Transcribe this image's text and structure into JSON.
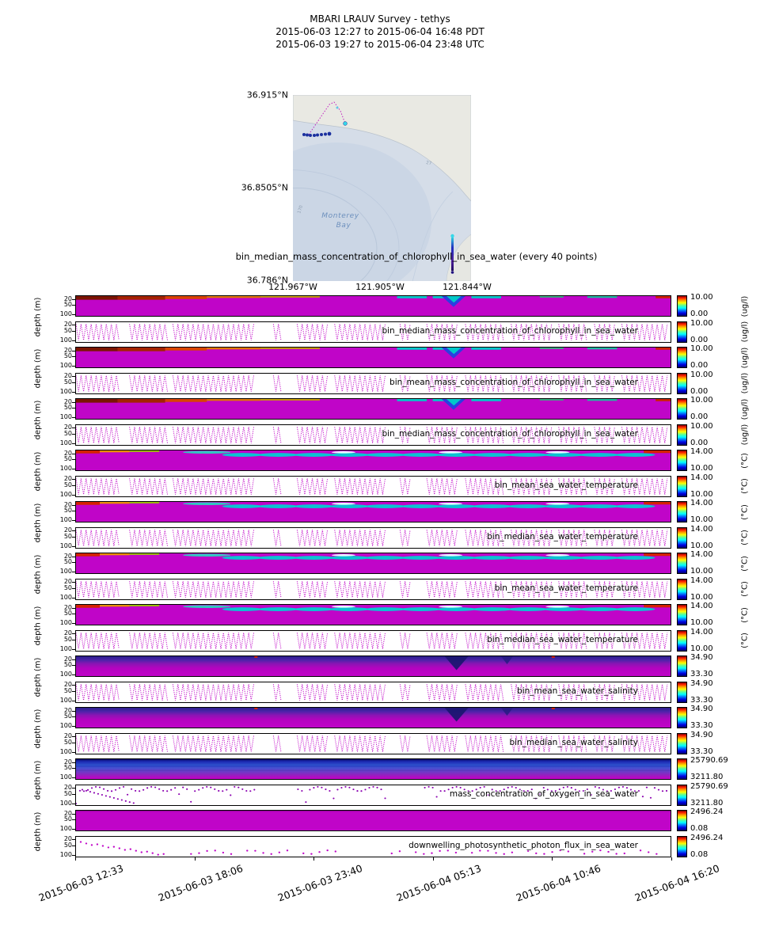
{
  "title": {
    "line1": "MBARI LRAUV Survey - tethys",
    "line2": "2015-06-03 12:27  to  2015-06-04 16:48 PDT",
    "line3": "2015-06-03 19:27  to  2015-06-04 23:48 UTC"
  },
  "map": {
    "lat_ticks": [
      "36.915°N",
      "36.8505°N",
      "36.786°N"
    ],
    "lon_ticks": [
      "121.967°W",
      "121.905°W",
      "121.844°W"
    ],
    "place_line1": "Monterey",
    "place_line2": "Bay",
    "contour_label_27": "27",
    "contour_label_170": "170"
  },
  "top_label": "bin_median_mass_concentration_of_chlorophyll_in_sea_water (every 40 points)",
  "chart_data": {
    "type": "heatmap",
    "description": "Depth-time section plots from LRAUV tethys survey; each measured parameter is shown as a binned contour (heatmap) panel plus a measurement scatter panel, each with a jet colorbar giving the color scale range.",
    "ylabel": "depth (m)",
    "y_ticks": [
      "20",
      "50",
      "100"
    ],
    "ylim": [
      0,
      110
    ],
    "y_inverted": true,
    "x_ticks": [
      "2015-06-03 12:33",
      "2015-06-03 18:06",
      "2015-06-03 23:40",
      "2015-06-04 05:13",
      "2015-06-04 10:46",
      "2015-06-04 16:20"
    ],
    "colormap": "jet",
    "panels": [
      {
        "parameter": "bin_median_mass_concentration_of_chlorophyll_in_sea_water",
        "unit": "(ug/l)",
        "cmax": "10.00",
        "cmin": "0.00",
        "kind": "chl"
      },
      {
        "parameter": "bin_mean_mass_concentration_of_chlorophyll_in_sea_water",
        "unit": "(ug/l)",
        "cmax": "10.00",
        "cmin": "0.00",
        "kind": "chl"
      },
      {
        "parameter": "bin_median_mass_concentration_of_chlorophyll_in_sea_water",
        "unit": "(ug/l)",
        "cmax": "10.00",
        "cmin": "0.00",
        "kind": "chl"
      },
      {
        "parameter": "bin_mean_sea_water_temperature",
        "unit": "(°C)",
        "cmax": "14.00",
        "cmin": "10.00",
        "kind": "temp"
      },
      {
        "parameter": "bin_median_sea_water_temperature",
        "unit": "(°C)",
        "cmax": "14.00",
        "cmin": "10.00",
        "kind": "temp"
      },
      {
        "parameter": "bin_mean_sea_water_temperature",
        "unit": "(°C)",
        "cmax": "14.00",
        "cmin": "10.00",
        "kind": "temp"
      },
      {
        "parameter": "bin_median_sea_water_temperature",
        "unit": "(°C)",
        "cmax": "14.00",
        "cmin": "10.00",
        "kind": "temp"
      },
      {
        "parameter": "bin_mean_sea_water_salinity",
        "unit": "",
        "cmax": "34.90",
        "cmin": "33.30",
        "kind": "sal"
      },
      {
        "parameter": "bin_median_sea_water_salinity",
        "unit": "",
        "cmax": "34.90",
        "cmin": "33.30",
        "kind": "sal"
      },
      {
        "parameter": "mass_concentration_of_oxygen_in_sea_water",
        "unit": "",
        "cmax": "25790.69",
        "cmin": "3211.80",
        "kind": "oxy"
      },
      {
        "parameter": "downwelling_photosynthetic_photon_flux_in_sea_water",
        "unit": "",
        "cmax": "2496.24",
        "cmin": "0.08",
        "kind": "flux"
      }
    ]
  }
}
